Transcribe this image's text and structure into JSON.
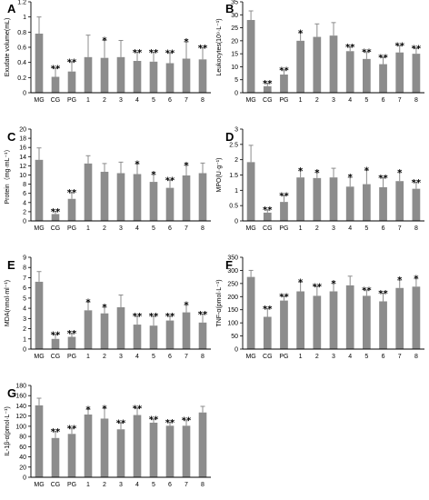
{
  "chart_data": [
    {
      "type": "bar",
      "panel": "A",
      "ylabel": "Exudate volume(mL)",
      "categories": [
        "MG",
        "CG",
        "PG",
        "1",
        "2",
        "3",
        "4",
        "5",
        "6",
        "7",
        "8"
      ],
      "values": [
        0.78,
        0.21,
        0.28,
        0.47,
        0.46,
        0.47,
        0.42,
        0.41,
        0.39,
        0.45,
        0.44
      ],
      "errors": [
        0.22,
        0.11,
        0.12,
        0.29,
        0.23,
        0.22,
        0.11,
        0.12,
        0.13,
        0.22,
        0.15
      ],
      "marks": [
        "",
        "**",
        "**",
        "",
        "*",
        "",
        "**",
        "**",
        "**",
        "*",
        "**"
      ],
      "ylim": [
        0,
        1.2
      ],
      "yticks": [
        "0",
        "0.2",
        "0.4",
        "0.6",
        "0.8",
        "1",
        "1.2"
      ]
    },
    {
      "type": "bar",
      "panel": "B",
      "ylabel": "Leukocytes(10⁹·L⁻¹)",
      "categories": [
        "MG",
        "CG",
        "PG",
        "1",
        "2",
        "3",
        "4",
        "5",
        "6",
        "7",
        "8"
      ],
      "values": [
        28,
        2.5,
        7,
        20,
        21.5,
        22,
        16,
        13,
        11,
        15.5,
        15
      ],
      "errors": [
        3.5,
        1,
        1.5,
        3,
        5,
        5,
        1.5,
        2.5,
        2.5,
        2.5,
        2
      ],
      "marks": [
        "",
        "**",
        "**",
        "*",
        "",
        "",
        "**",
        "**",
        "**",
        "**",
        "**"
      ],
      "ylim": [
        0,
        35
      ],
      "yticks": [
        "0",
        "5",
        "10",
        "15",
        "20",
        "25",
        "30",
        "35"
      ]
    },
    {
      "type": "bar",
      "panel": "C",
      "ylabel": "Protein（mg·mL⁻¹）",
      "categories": [
        "MG",
        "CG",
        "PG",
        "1",
        "2",
        "3",
        "4",
        "5",
        "6",
        "7",
        "8"
      ],
      "values": [
        13.3,
        1.5,
        4.8,
        12.5,
        10.7,
        10.4,
        10.2,
        8.5,
        7.2,
        9.9,
        10.4
      ],
      "errors": [
        2.6,
        0.5,
        1.3,
        1.7,
        1.8,
        2.4,
        2.2,
        1.6,
        1.6,
        2.2,
        2.2
      ],
      "marks": [
        "",
        "**",
        "**",
        "",
        "",
        "",
        "*",
        "*",
        "**",
        "*",
        ""
      ],
      "ylim": [
        0,
        20
      ],
      "yticks": [
        "0",
        "2",
        "4",
        "6",
        "8",
        "10",
        "12",
        "14",
        "16",
        "18",
        "20"
      ]
    },
    {
      "type": "bar",
      "panel": "D",
      "ylabel": "MPO(U·g⁻¹)",
      "categories": [
        "MG",
        "CG",
        "PG",
        "1",
        "2",
        "3",
        "4",
        "5",
        "6",
        "7",
        "8"
      ],
      "values": [
        1.92,
        0.27,
        0.62,
        1.42,
        1.4,
        1.42,
        1.12,
        1.2,
        1.1,
        1.3,
        1.05
      ],
      "errors": [
        0.55,
        0.08,
        0.2,
        0.22,
        0.18,
        0.3,
        0.3,
        0.45,
        0.3,
        0.28,
        0.2
      ],
      "marks": [
        "",
        "**",
        "**",
        "*",
        "*",
        "",
        "*",
        "*",
        "**",
        "*",
        "**"
      ],
      "ylim": [
        0,
        3
      ],
      "yticks": [
        "0",
        "0.5",
        "1",
        "1.5",
        "2",
        "2.5",
        "3"
      ]
    },
    {
      "type": "bar",
      "panel": "E",
      "ylabel": "MDA(nmol·ml⁻¹)",
      "categories": [
        "MG",
        "CG",
        "PG",
        "1",
        "2",
        "3",
        "4",
        "5",
        "6",
        "7",
        "8"
      ],
      "values": [
        6.6,
        1.0,
        1.2,
        3.8,
        3.5,
        4.1,
        2.4,
        2.3,
        2.8,
        3.6,
        2.6
      ],
      "errors": [
        1.0,
        0.4,
        0.3,
        0.8,
        0.6,
        1.2,
        0.8,
        0.9,
        0.4,
        0.7,
        0.8
      ],
      "marks": [
        "",
        "**",
        "**",
        "*",
        "*",
        "",
        "**",
        "**",
        "**",
        "*",
        "**"
      ],
      "ylim": [
        0,
        9
      ],
      "yticks": [
        "0",
        "1",
        "2",
        "3",
        "4",
        "5",
        "6",
        "7",
        "8",
        "9"
      ]
    },
    {
      "type": "bar",
      "panel": "F",
      "ylabel": "TNF-α(pmol·L⁻¹)",
      "categories": [
        "MG",
        "CG",
        "PG",
        "1",
        "2",
        "3",
        "4",
        "5",
        "6",
        "7",
        "8"
      ],
      "values": [
        275,
        123,
        185,
        220,
        203,
        220,
        243,
        203,
        182,
        233,
        238
      ],
      "errors": [
        25,
        30,
        15,
        35,
        35,
        30,
        35,
        20,
        30,
        30,
        30
      ],
      "marks": [
        "",
        "**",
        "**",
        "*",
        "**",
        "*",
        "",
        "**",
        "**",
        "*",
        "*"
      ],
      "ylim": [
        0,
        350
      ],
      "yticks": [
        "0",
        "50",
        "100",
        "150",
        "200",
        "250",
        "300",
        "350"
      ]
    },
    {
      "type": "bar",
      "panel": "G",
      "ylabel": "IL-1β-α(pmol·L⁻¹)",
      "categories": [
        "MG",
        "CG",
        "PG",
        "1",
        "2",
        "3",
        "4",
        "5",
        "6",
        "7",
        "8"
      ],
      "values": [
        141,
        77,
        85,
        123,
        115,
        94,
        122,
        107,
        101,
        101,
        127
      ],
      "errors": [
        14,
        12,
        10,
        10,
        20,
        12,
        13,
        6,
        6,
        10,
        12
      ],
      "marks": [
        "",
        "**",
        "**",
        "*",
        "*",
        "**",
        "**",
        "**",
        "**",
        "**",
        ""
      ],
      "ylim": [
        0,
        180
      ],
      "yticks": [
        "0",
        "20",
        "40",
        "60",
        "80",
        "100",
        "120",
        "140",
        "160",
        "180"
      ]
    }
  ],
  "colors": {
    "bar": "#8c8c8c",
    "axis": "#000000"
  }
}
